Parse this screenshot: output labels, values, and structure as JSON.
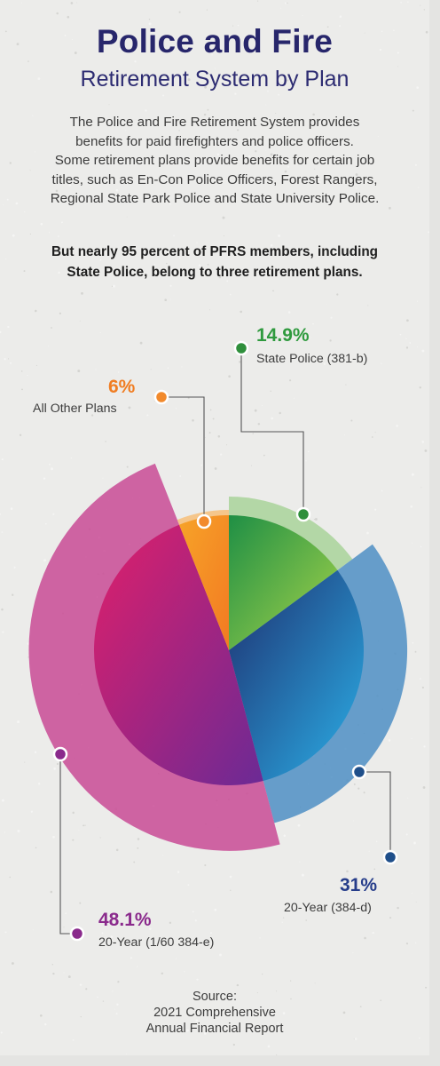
{
  "header": {
    "title": "Police and Fire",
    "subtitle": "Retirement System by Plan"
  },
  "intro": {
    "lines": [
      "The Police and Fire Retirement System provides",
      "benefits for paid firefighters and police officers.",
      "Some retirement plans provide benefits for certain job",
      "titles, such as En-Con Police Officers, Forest Rangers,",
      "Regional State Park Police and State University Police."
    ],
    "emphasis_lines": [
      "But nearly 95 percent of PFRS members, including",
      "State Police, belong to three retirement plans."
    ]
  },
  "chart_data": {
    "type": "pie",
    "slices": [
      {
        "label": "State Police (381-b)",
        "value": 14.9,
        "value_label": "14.9%",
        "color": "#2f9a3e"
      },
      {
        "label": "20-Year (384-d)",
        "value": 31,
        "value_label": "31%",
        "color": "#1f4f8a"
      },
      {
        "label": "20-Year (1/60 384-e)",
        "value": 48.1,
        "value_label": "48.1%",
        "color": "#8a2a8c"
      },
      {
        "label": "All Other Plans",
        "value": 6,
        "value_label": "6%",
        "color": "#f28a2c"
      }
    ]
  },
  "source": {
    "lines": [
      "Source:",
      "2021 Comprehensive",
      "Annual Financial Report"
    ]
  },
  "colors": {
    "title": "#27266b",
    "background": "#ececea"
  }
}
